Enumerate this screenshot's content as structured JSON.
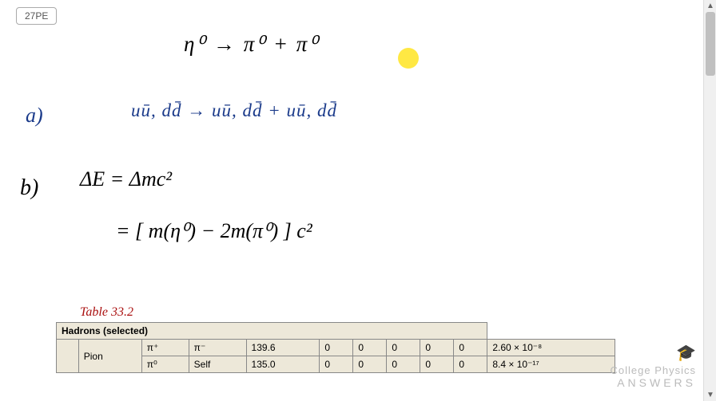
{
  "badge": {
    "label": "27PE"
  },
  "equations": {
    "line1": "η⁰  →   π⁰  +  π⁰",
    "blue_decay": "uū, dd̄  →  uū, dd̄  +  uū, dd̄",
    "delta_e": "ΔE = Δmc²",
    "bracket": "= [ m(η⁰) − 2m(π⁰) ] c²"
  },
  "parts": {
    "a": "a)",
    "b": "b)"
  },
  "table_ref": "Table 33.2",
  "table": {
    "header": "Hadrons (selected)",
    "group_label": "Pion",
    "rows": [
      {
        "sym": "π⁺",
        "anti": "π⁻",
        "mass": "139.6",
        "c1": "0",
        "c2": "0",
        "c3": "0",
        "c4": "0",
        "c5": "0",
        "life": "2.60 × 10⁻⁸"
      },
      {
        "sym": "π⁰",
        "anti": "Self",
        "mass": "135.0",
        "c1": "0",
        "c2": "0",
        "c3": "0",
        "c4": "0",
        "c5": "0",
        "life": "8.4 × 10⁻¹⁷"
      }
    ]
  },
  "watermark": {
    "line1": "College Physics",
    "line2": "ANSWERS"
  }
}
